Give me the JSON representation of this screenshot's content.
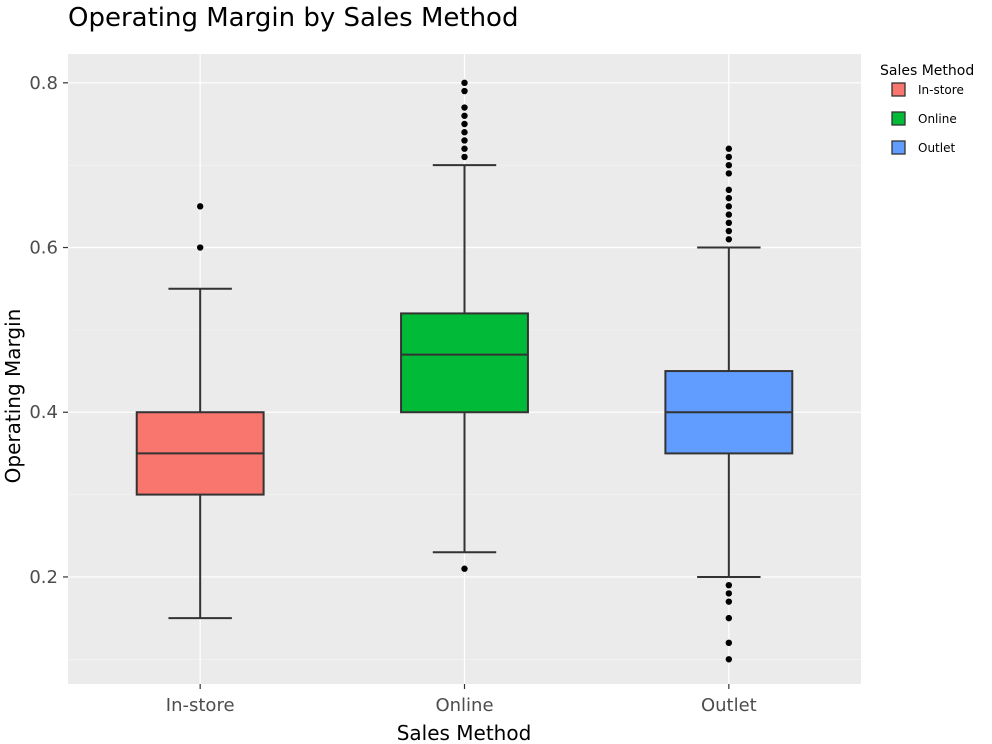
{
  "chart_data": {
    "type": "box",
    "title": "Operating Margin by Sales Method",
    "xlabel": "Sales Method",
    "ylabel": "Operating Margin",
    "ylim": [
      0.07,
      0.835
    ],
    "yticks": [
      0.2,
      0.4,
      0.6,
      0.8
    ],
    "yticklabels": [
      "0.2",
      "0.4",
      "0.6",
      "0.8"
    ],
    "categories": [
      "In-store",
      "Online",
      "Outlet"
    ],
    "grid": true,
    "legend": {
      "title": "Sales Method",
      "placement": "right",
      "entries": [
        "In-store",
        "Online",
        "Outlet"
      ]
    },
    "series": [
      {
        "category": "In-store",
        "color": "#F8766D",
        "whisker_low": 0.15,
        "q1": 0.3,
        "median": 0.35,
        "q3": 0.4,
        "whisker_high": 0.55,
        "outliers": [
          0.6,
          0.65
        ]
      },
      {
        "category": "Online",
        "color": "#00BA38",
        "whisker_low": 0.23,
        "q1": 0.4,
        "median": 0.47,
        "q3": 0.52,
        "whisker_high": 0.7,
        "outliers": [
          0.21,
          0.71,
          0.72,
          0.73,
          0.74,
          0.75,
          0.76,
          0.77,
          0.79,
          0.8
        ]
      },
      {
        "category": "Outlet",
        "color": "#619CFF",
        "whisker_low": 0.2,
        "q1": 0.35,
        "median": 0.4,
        "q3": 0.45,
        "whisker_high": 0.6,
        "outliers": [
          0.1,
          0.12,
          0.15,
          0.17,
          0.18,
          0.19,
          0.61,
          0.62,
          0.63,
          0.64,
          0.65,
          0.66,
          0.67,
          0.69,
          0.7,
          0.71,
          0.72
        ]
      }
    ]
  }
}
